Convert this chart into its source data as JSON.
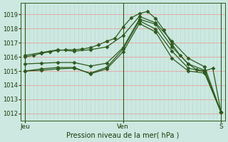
{
  "bg_color": "#cce8e0",
  "grid_color_v": "#b8d8d0",
  "grid_color_h": "#f08080",
  "line_color": "#2d5a1e",
  "ylabel_ticks": [
    1012,
    1013,
    1014,
    1015,
    1016,
    1017,
    1018,
    1019
  ],
  "ylim": [
    1011.5,
    1019.8
  ],
  "xlim": [
    0,
    100
  ],
  "xlabel": "Pression niveau de la mer( hPa )",
  "xtick_labels": [
    "Jeu",
    "",
    "Ven",
    "",
    "S"
  ],
  "xtick_positions": [
    2,
    25,
    50,
    75,
    98
  ],
  "lines": [
    {
      "x": [
        2,
        6,
        10,
        14,
        18,
        22,
        26,
        30,
        34,
        38,
        42,
        46,
        50,
        54,
        58,
        62,
        66,
        70,
        74,
        78,
        82,
        86,
        90,
        94,
        98
      ],
      "y": [
        1016.0,
        1016.1,
        1016.25,
        1016.35,
        1016.45,
        1016.5,
        1016.5,
        1016.55,
        1016.65,
        1016.85,
        1017.1,
        1017.3,
        1018.1,
        1018.75,
        1019.05,
        1019.2,
        1018.7,
        1017.9,
        1016.9,
        1016.1,
        1015.5,
        1015.1,
        1015.0,
        1015.2,
        1012.1
      ]
    },
    {
      "x": [
        2,
        10,
        18,
        26,
        34,
        42,
        50,
        58,
        66,
        74,
        82,
        90,
        98
      ],
      "y": [
        1016.1,
        1016.3,
        1016.5,
        1016.4,
        1016.5,
        1016.7,
        1017.5,
        1018.85,
        1018.4,
        1017.1,
        1015.9,
        1015.3,
        1012.1
      ]
    },
    {
      "x": [
        2,
        10,
        18,
        26,
        34,
        42,
        50,
        58,
        66,
        74,
        82,
        90,
        98
      ],
      "y": [
        1015.5,
        1015.55,
        1015.6,
        1015.6,
        1015.35,
        1015.55,
        1016.65,
        1018.65,
        1018.3,
        1016.7,
        1015.5,
        1015.05,
        1012.1
      ]
    },
    {
      "x": [
        2,
        10,
        18,
        26,
        34,
        42,
        50,
        58,
        66,
        74,
        82,
        90,
        98
      ],
      "y": [
        1015.0,
        1015.15,
        1015.25,
        1015.25,
        1014.8,
        1015.15,
        1016.35,
        1018.35,
        1017.75,
        1015.9,
        1015.0,
        1014.85,
        1012.1
      ]
    },
    {
      "x": [
        2,
        10,
        18,
        26,
        34,
        42,
        50,
        58,
        66,
        74,
        82,
        90,
        98
      ],
      "y": [
        1015.0,
        1015.05,
        1015.15,
        1015.2,
        1014.85,
        1015.25,
        1016.55,
        1018.55,
        1017.95,
        1016.4,
        1015.2,
        1014.95,
        1012.1
      ]
    }
  ]
}
